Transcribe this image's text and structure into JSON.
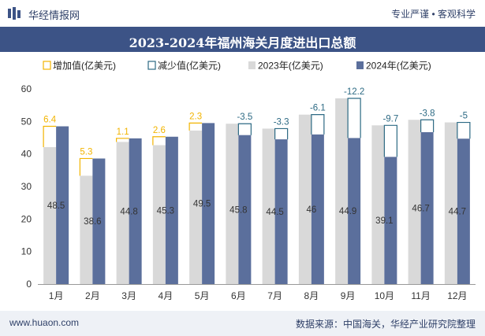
{
  "header": {
    "brand": "华经情报网",
    "tagline": "专业严谨 • 客观科学"
  },
  "footer": {
    "website": "www.huaon.com",
    "source": "数据来源：中国海关，华经产业研究院整理"
  },
  "colors": {
    "increase": "#f2b400",
    "decrease": "#2d6a84",
    "bar2023": "#d9d9d9",
    "bar2024": "#5b6f9c",
    "title_bg": "#3c5386"
  },
  "chart_data": {
    "type": "bar",
    "title": "2023-2024年福州海关月度进出口总额",
    "legend": [
      "增加值(亿美元)",
      "减少值(亿美元)",
      "2023年(亿美元)",
      "2024年(亿美元)"
    ],
    "categories": [
      "1月",
      "2月",
      "3月",
      "4月",
      "5月",
      "6月",
      "7月",
      "8月",
      "9月",
      "10月",
      "11月",
      "12月"
    ],
    "series": [
      {
        "name": "2023年(亿美元)",
        "values": [
          42.1,
          33.3,
          43.7,
          42.7,
          47.2,
          49.3,
          47.8,
          52.1,
          57.1,
          48.8,
          50.5,
          49.7
        ]
      },
      {
        "name": "2024年(亿美元)",
        "values": [
          48.5,
          38.6,
          44.8,
          45.3,
          49.5,
          45.8,
          44.5,
          46,
          44.9,
          39.1,
          46.7,
          44.7
        ]
      }
    ],
    "change": [
      6.4,
      5.3,
      1.1,
      2.6,
      2.3,
      -3.5,
      -3.3,
      -6.1,
      -12.2,
      -9.7,
      -3.8,
      -5
    ],
    "change_labels": [
      "6.4",
      "5.3",
      "1.1",
      "2.6",
      "2.3",
      "-3.5",
      "-3.3",
      "-6.1",
      "-12.2",
      "-9.7",
      "-3.8",
      "-5"
    ],
    "value_labels_2024": [
      "48.5",
      "38.6",
      "44.8",
      "45.3",
      "49.5",
      "45.8",
      "44.5",
      "46",
      "44.9",
      "39.1",
      "46.7",
      "44.7"
    ],
    "ylim": [
      0,
      60
    ],
    "yticks": [
      0,
      10,
      20,
      30,
      40,
      50,
      60
    ],
    "ytick_labels": [
      "0",
      "10",
      "20",
      "30",
      "40",
      "50",
      "60"
    ]
  }
}
